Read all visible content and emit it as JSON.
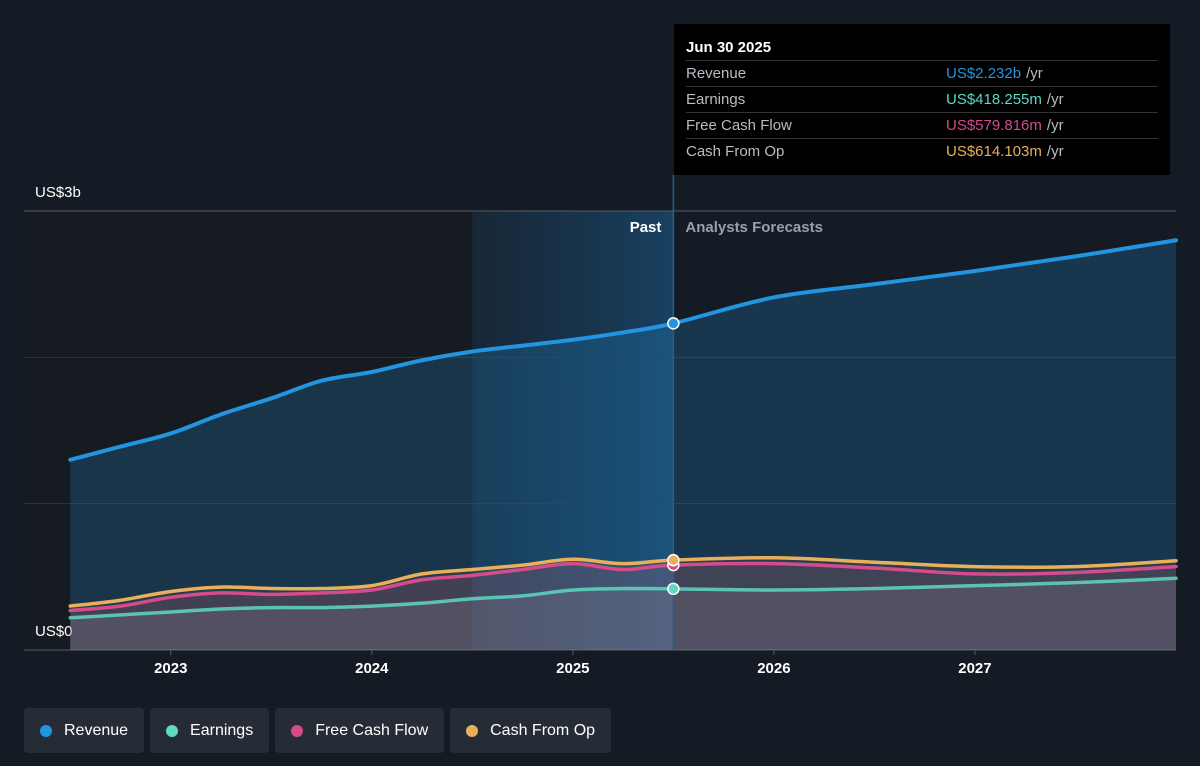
{
  "chart_data": {
    "type": "line",
    "x": [
      2022.5,
      2022.75,
      2023,
      2023.25,
      2023.5,
      2023.75,
      2024,
      2024.25,
      2024.5,
      2024.75,
      2025,
      2025.25,
      2025.5,
      2026,
      2026.5,
      2027,
      2027.5,
      2028
    ],
    "series": [
      {
        "name": "Revenue",
        "color": "#2394df",
        "values": [
          1.3,
          1.39,
          1.48,
          1.61,
          1.72,
          1.84,
          1.9,
          1.98,
          2.04,
          2.08,
          2.12,
          2.17,
          2.232,
          2.41,
          2.5,
          2.59,
          2.69,
          2.8
        ]
      },
      {
        "name": "Earnings",
        "color": "#5ed8c2",
        "values": [
          0.22,
          0.24,
          0.26,
          0.28,
          0.29,
          0.29,
          0.3,
          0.32,
          0.35,
          0.37,
          0.41,
          0.42,
          0.418,
          0.41,
          0.42,
          0.44,
          0.46,
          0.49
        ]
      },
      {
        "name": "Free Cash Flow",
        "color": "#d54b8d",
        "values": [
          0.27,
          0.3,
          0.36,
          0.39,
          0.38,
          0.39,
          0.41,
          0.48,
          0.51,
          0.55,
          0.59,
          0.55,
          0.58,
          0.59,
          0.56,
          0.52,
          0.53,
          0.57
        ]
      },
      {
        "name": "Cash From Op",
        "color": "#e8b05a",
        "values": [
          0.3,
          0.34,
          0.4,
          0.43,
          0.42,
          0.42,
          0.44,
          0.52,
          0.55,
          0.58,
          0.62,
          0.59,
          0.614,
          0.63,
          0.6,
          0.57,
          0.57,
          0.61
        ]
      }
    ],
    "xlim": [
      2022.27,
      2028.0
    ],
    "xticks": [
      2023,
      2024,
      2025,
      2026,
      2027
    ],
    "ylim": [
      0,
      3
    ],
    "yticks": [
      {
        "value": 0,
        "label": "US$0"
      },
      {
        "value": 3,
        "label": "US$3b"
      }
    ],
    "grid_values": [
      1,
      2,
      3
    ],
    "highlight_start": 2024.5,
    "forecast_start": 2025.5,
    "past_label": "Past",
    "forecast_label": "Analysts Forecasts",
    "tooltip": {
      "date": "Jun 30 2025",
      "rows": [
        {
          "label": "Revenue",
          "value": "US$2.232b",
          "suffix": "/yr"
        },
        {
          "label": "Earnings",
          "value": "US$418.255m",
          "suffix": "/yr"
        },
        {
          "label": "Free Cash Flow",
          "value": "US$579.816m",
          "suffix": "/yr"
        },
        {
          "label": "Cash From Op",
          "value": "US$614.103m",
          "suffix": "/yr"
        }
      ]
    }
  }
}
